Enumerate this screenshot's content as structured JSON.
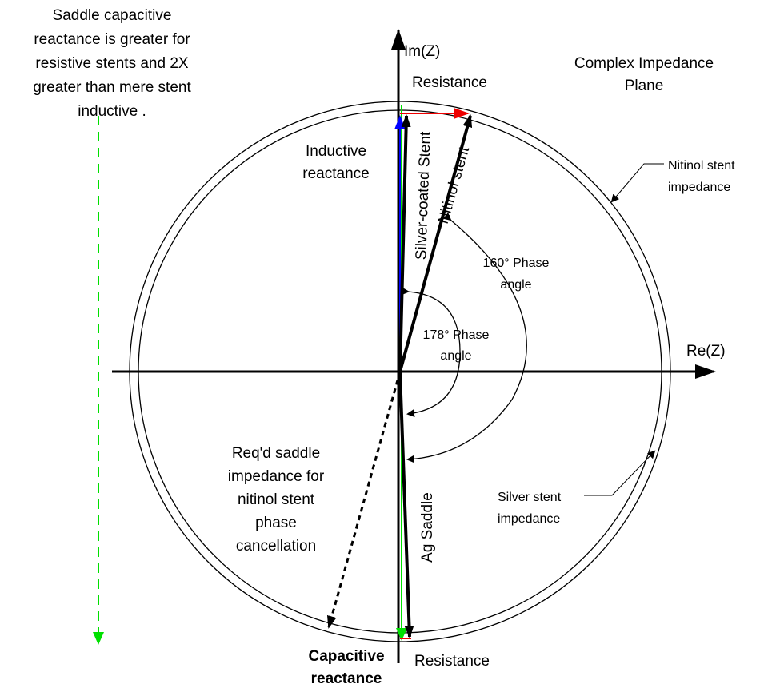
{
  "title": [
    "Complex Impedance",
    "Plane"
  ],
  "note": [
    "Saddle capacitive",
    "reactance is greater for",
    "resistive stents and 2X",
    "greater than mere stent",
    "inductive ."
  ],
  "axes": {
    "imaginary": "Im(Z)",
    "real": "Re(Z)"
  },
  "labels": {
    "resistance_top": "Resistance",
    "resistance_bottom": "Resistance",
    "inductive": [
      "Inductive",
      "reactance"
    ],
    "capacitive": [
      "Capacitive",
      "reactance"
    ],
    "silver_coated": "Silver-coated Stent",
    "nitinol": "Nitinol stent",
    "ag_saddle": "Ag Saddle",
    "nitinol_impedance": [
      "Nitinol stent",
      "impedance"
    ],
    "silver_impedance": [
      "Silver stent",
      "impedance"
    ],
    "phase_160": [
      "160° Phase",
      "angle"
    ],
    "phase_178": [
      "178° Phase",
      "angle"
    ],
    "required": [
      "Req'd saddle",
      "impedance for",
      "nitinol stent",
      "phase",
      "cancellation"
    ]
  }
}
